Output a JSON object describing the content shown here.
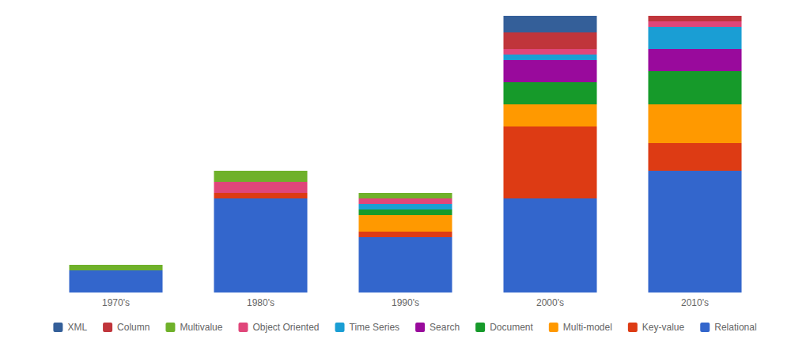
{
  "chart_data": {
    "type": "bar",
    "stacked": true,
    "legend": "bottom",
    "tick_labels": "x",
    "categories": [
      "1970's",
      "1980's",
      "1990's",
      "2000's",
      "2010's"
    ],
    "ylim": [
      0,
      50
    ],
    "series": [
      {
        "name": "XML",
        "color": "#345f99",
        "values": [
          0,
          0,
          0,
          3,
          0
        ]
      },
      {
        "name": "Column",
        "color": "#c0353b",
        "values": [
          0,
          0,
          0,
          3,
          1
        ]
      },
      {
        "name": "Multivalue",
        "color": "#6fb12a",
        "values": [
          1,
          2,
          1,
          0,
          0
        ]
      },
      {
        "name": "Object Oriented",
        "color": "#e0467a",
        "values": [
          0,
          2,
          1,
          1,
          1
        ]
      },
      {
        "name": "Time Series",
        "color": "#1a9ed4",
        "values": [
          0,
          0,
          1,
          1,
          4
        ]
      },
      {
        "name": "Search",
        "color": "#990a9c",
        "values": [
          0,
          0,
          0,
          4,
          4
        ]
      },
      {
        "name": "Document",
        "color": "#169a2a",
        "values": [
          0,
          0,
          1,
          4,
          6
        ]
      },
      {
        "name": "Multi-model",
        "color": "#ff9900",
        "values": [
          0,
          0,
          3,
          4,
          7
        ]
      },
      {
        "name": "Key-value",
        "color": "#dd3b14",
        "values": [
          0,
          1,
          1,
          13,
          5
        ]
      },
      {
        "name": "Relational",
        "color": "#3366cc",
        "values": [
          4,
          17,
          10,
          17,
          22
        ]
      }
    ]
  }
}
